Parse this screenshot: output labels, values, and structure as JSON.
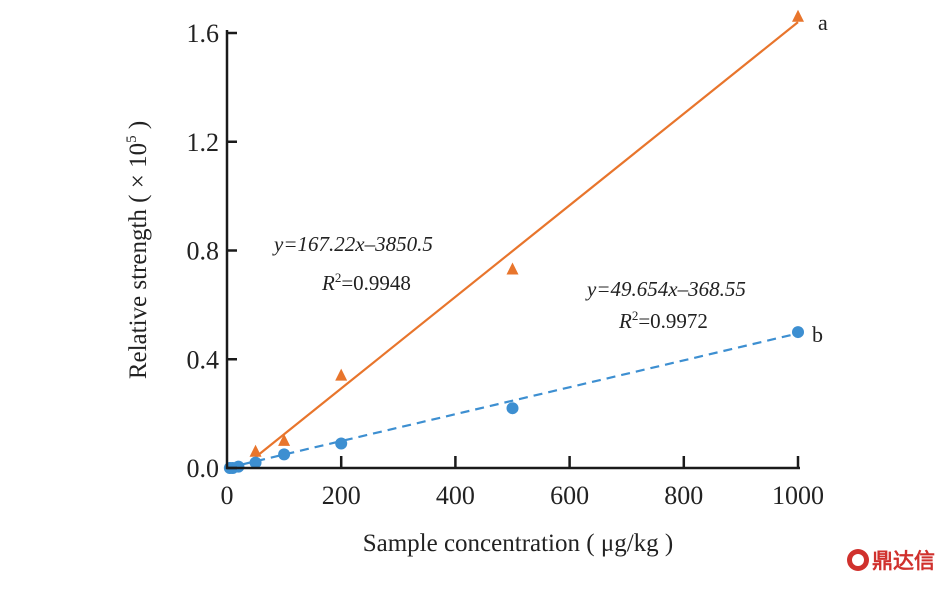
{
  "chart_data": {
    "type": "scatter",
    "title": "",
    "xlabel": "Sample  concentration ( μg/kg )",
    "ylabel": "Relative  strength ( ×10⁵ )",
    "ylabel_parts": {
      "main": "Relative  strength ( × 10",
      "sup": "5",
      "end": " )"
    },
    "xlim": [
      0,
      1000
    ],
    "ylim": [
      0,
      1.6
    ],
    "x_ticks": [
      0,
      200,
      400,
      600,
      800,
      1000
    ],
    "x_tick_labels": [
      "0",
      "200",
      "400",
      "600",
      "800",
      "1000"
    ],
    "y_ticks": [
      0.0,
      0.4,
      0.8,
      1.2,
      1.6
    ],
    "y_tick_labels": [
      "0.0",
      "0.4",
      "0.8",
      "1.2",
      "1.6"
    ],
    "grid": false,
    "series": [
      {
        "name": "a",
        "marker": "triangle",
        "line_style": "solid",
        "color": "#e8752c",
        "x": [
          50,
          100,
          200,
          500,
          1000
        ],
        "y": [
          0.06,
          0.1,
          0.34,
          0.73,
          1.66
        ],
        "fit_line": {
          "x": [
            50,
            1000
          ],
          "y": [
            0.04,
            1.64
          ]
        },
        "equation": "y=167.22x–3850.5",
        "r2_label": "R",
        "r2_value": "=0.9948"
      },
      {
        "name": "b",
        "marker": "circle",
        "line_style": "dashed",
        "color": "#3d8fd1",
        "x": [
          5,
          10,
          20,
          50,
          100,
          200,
          500,
          1000
        ],
        "y": [
          0.0,
          0.0,
          0.005,
          0.02,
          0.05,
          0.09,
          0.22,
          0.5
        ],
        "fit_line": {
          "x": [
            0,
            1000
          ],
          "y": [
            0.0,
            0.495
          ]
        },
        "equation": "y=49.654x–368.55",
        "r2_label": "R",
        "r2_value": "=0.9972"
      }
    ]
  },
  "watermark": {
    "text": "鼎达信"
  }
}
